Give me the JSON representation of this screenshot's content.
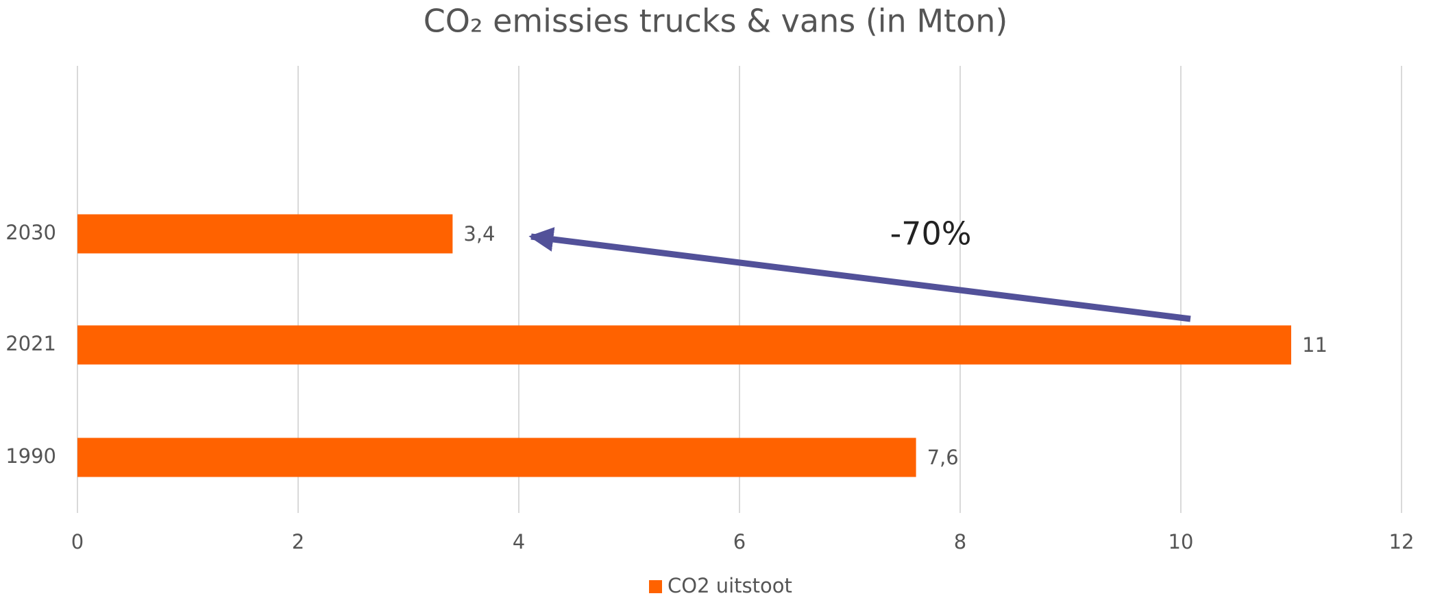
{
  "chart_data": {
    "type": "bar",
    "orientation": "horizontal",
    "title": "CO₂ emissies trucks & vans (in Mton)",
    "categories": [
      "1990",
      "2021",
      "2030"
    ],
    "series": [
      {
        "name": "CO2 uitstoot",
        "color": "#ff6200",
        "values": [
          7.6,
          11,
          3.4
        ],
        "value_labels": [
          "7,6",
          "11",
          "3,4"
        ]
      }
    ],
    "xlim": [
      0,
      12
    ],
    "xticks": [
      0,
      2,
      4,
      6,
      8,
      10,
      12
    ],
    "grid": true,
    "legend": "bottom",
    "annotations": [
      "-70%"
    ]
  }
}
